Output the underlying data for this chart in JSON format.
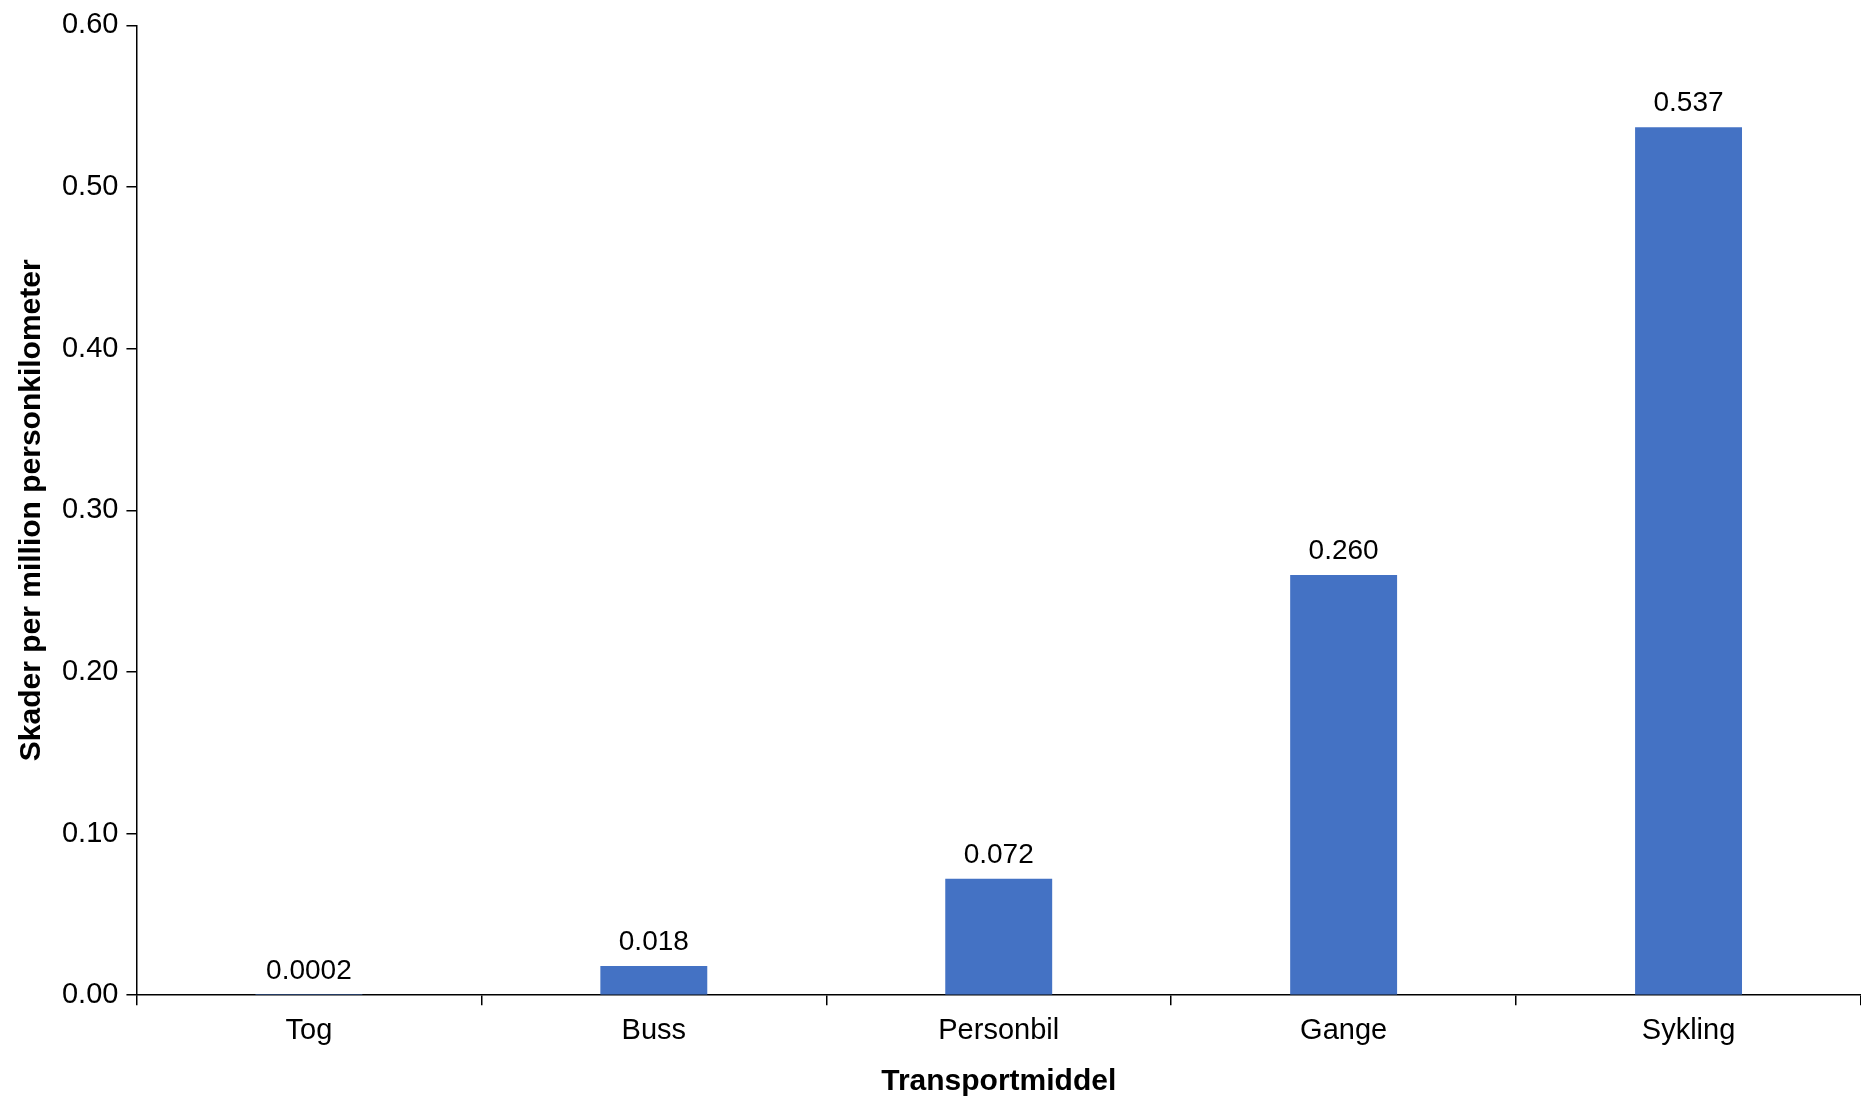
{
  "chart_data": {
    "type": "bar",
    "xlabel": "Transportmiddel",
    "ylabel": "Skader per million personkilometer",
    "categories": [
      "Tog",
      "Buss",
      "Personbil",
      "Gange",
      "Sykling"
    ],
    "values": [
      0.0002,
      0.018,
      0.072,
      0.26,
      0.537
    ],
    "value_labels": [
      "0.0002",
      "0.018",
      "0.072",
      "0.260",
      "0.537"
    ],
    "color": "#4472c4",
    "ylim": [
      0,
      0.6
    ],
    "yticks": [
      {
        "value": 0,
        "label": "0.00"
      },
      {
        "value": 0.1,
        "label": "0.10"
      },
      {
        "value": 0.2,
        "label": "0.20"
      },
      {
        "value": 0.3,
        "label": "0.30"
      },
      {
        "value": 0.4,
        "label": "0.40"
      },
      {
        "value": 0.5,
        "label": "0.50"
      },
      {
        "value": 0.6,
        "label": "0.60"
      }
    ],
    "grid": false,
    "legend": false
  }
}
